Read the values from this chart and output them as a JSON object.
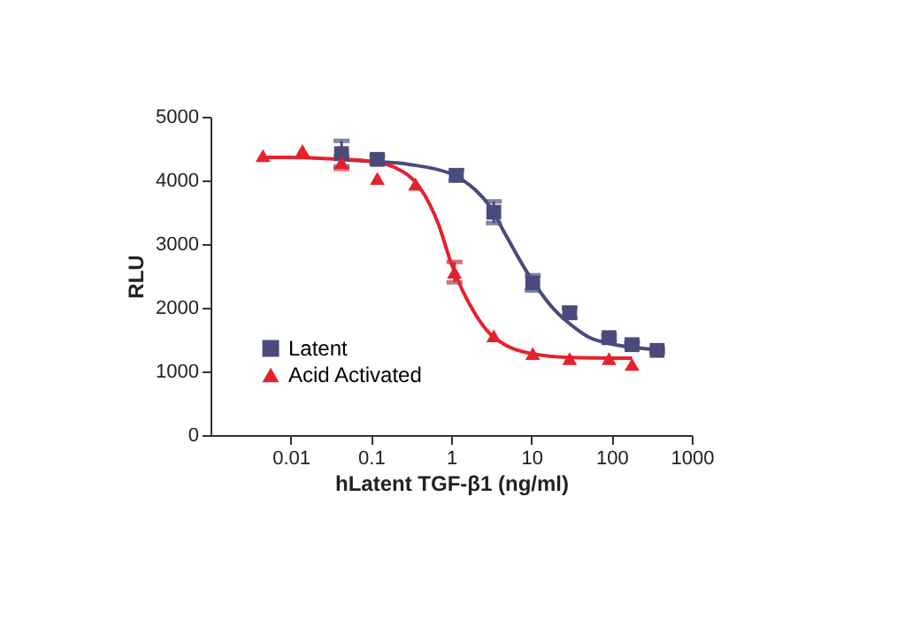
{
  "chart_data": {
    "type": "scatter",
    "xlabel": "hLatent TGF-β1 (ng/ml)",
    "ylabel": "RLU",
    "log": "x",
    "xlim": [
      0.001,
      1000
    ],
    "xticks": [
      0.01,
      0.1,
      1,
      10,
      100,
      1000
    ],
    "ylim": [
      0,
      5000
    ],
    "yticks": [
      0,
      1000,
      2000,
      3000,
      4000,
      5000
    ],
    "grid": false,
    "legend": "bottom left",
    "series": [
      {
        "name": "Latent",
        "marker": "square",
        "color": "#4b4a7c",
        "x": [
          0.043,
          0.12,
          1.16,
          3.4,
          10.4,
          30,
          93,
          180,
          370
        ],
        "values": [
          4420,
          4330,
          4080,
          3500,
          2390,
          1920,
          1530,
          1420,
          1330
        ],
        "errors": [
          200,
          60,
          80,
          170,
          120,
          80,
          40,
          40,
          30
        ]
      },
      {
        "name": "Acid Activated",
        "marker": "triangle",
        "color": "#e8202a",
        "x": [
          0.0045,
          0.014,
          0.043,
          0.12,
          0.36,
          1.1,
          3.4,
          10.4,
          30,
          93,
          180
        ],
        "values": [
          4390,
          4470,
          4280,
          4030,
          3940,
          2560,
          1560,
          1280,
          1200,
          1200,
          1110
        ],
        "errors": [
          null,
          null,
          100,
          null,
          null,
          160,
          null,
          null,
          null,
          null,
          null
        ]
      },
      {
        "type": "line",
        "color": "#4b4a7c",
        "x": [
          0.04,
          0.1,
          0.3,
          1,
          2,
          3,
          5,
          10,
          20,
          30,
          50,
          100,
          200,
          370
        ],
        "values": [
          4330,
          4300,
          4250,
          4100,
          3850,
          3600,
          3100,
          2450,
          1950,
          1750,
          1550,
          1430,
          1370,
          1340
        ]
      },
      {
        "type": "line",
        "color": "#e8202a",
        "x": [
          0.0045,
          0.01,
          0.03,
          0.1,
          0.2,
          0.4,
          0.7,
          1,
          2,
          3,
          5,
          10,
          30,
          100,
          180
        ],
        "values": [
          4360,
          4360,
          4340,
          4300,
          4200,
          3900,
          3300,
          2700,
          1900,
          1600,
          1400,
          1280,
          1220,
          1210,
          1210
        ]
      }
    ]
  }
}
